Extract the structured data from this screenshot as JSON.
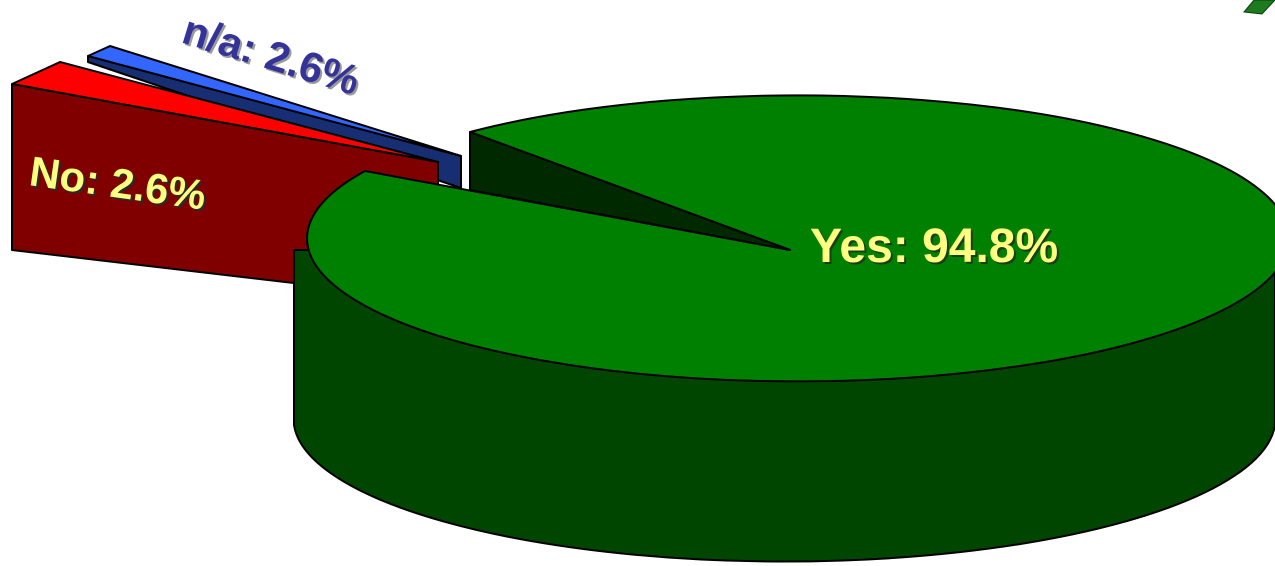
{
  "chart_data": {
    "type": "pie",
    "title": "",
    "style": "3d-exploded",
    "slices": [
      {
        "label": "Yes",
        "value": 94.8,
        "text": "Yes: 94.8%",
        "color": "#008000",
        "label_color": "#FFFF80"
      },
      {
        "label": "No",
        "value": 2.6,
        "text": "No: 2.6%",
        "color": "#FF0000",
        "label_color": "#FFFF80"
      },
      {
        "label": "n/a",
        "value": 2.6,
        "text": "n/a: 2.6%",
        "color": "#3366FF",
        "label_color": "#333399"
      }
    ]
  }
}
